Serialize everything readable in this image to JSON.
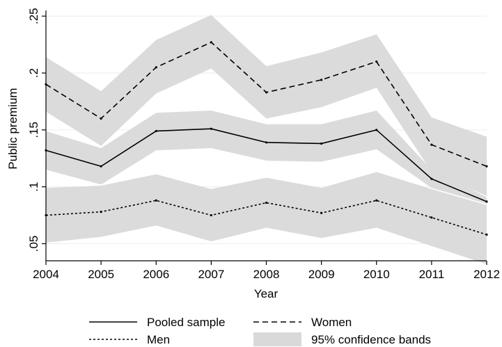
{
  "chart_data": {
    "type": "line",
    "title": "",
    "xlabel": "Year",
    "ylabel": "Public premium",
    "x": [
      2004,
      2005,
      2006,
      2007,
      2008,
      2009,
      2010,
      2011,
      2012
    ],
    "xticks": [
      "2004",
      "2005",
      "2006",
      "2007",
      "2008",
      "2009",
      "2010",
      "2011",
      "2012"
    ],
    "ylim": [
      0.035,
      0.255
    ],
    "yticks": [
      0.05,
      0.1,
      0.15,
      0.2,
      0.25
    ],
    "yticklabels": [
      ".05",
      ".1",
      ".15",
      ".2",
      ".25"
    ],
    "grid": true,
    "legend_position": "bottom",
    "series": [
      {
        "name": "Pooled sample",
        "style": "solid",
        "values": [
          0.132,
          0.118,
          0.149,
          0.151,
          0.139,
          0.138,
          0.15,
          0.107,
          0.087
        ],
        "ci_lower": [
          0.115,
          0.102,
          0.132,
          0.134,
          0.123,
          0.122,
          0.133,
          0.099,
          0.085
        ],
        "ci_upper": [
          0.149,
          0.134,
          0.165,
          0.167,
          0.155,
          0.155,
          0.167,
          0.115,
          0.091
        ]
      },
      {
        "name": "Women",
        "style": "dashed",
        "values": [
          0.19,
          0.16,
          0.205,
          0.227,
          0.183,
          0.194,
          0.21,
          0.137,
          0.118
        ],
        "ci_lower": [
          0.166,
          0.136,
          0.182,
          0.204,
          0.16,
          0.17,
          0.187,
          0.113,
          0.092
        ],
        "ci_upper": [
          0.214,
          0.184,
          0.229,
          0.251,
          0.206,
          0.218,
          0.234,
          0.161,
          0.144
        ]
      },
      {
        "name": "Men",
        "style": "dotted",
        "values": [
          0.075,
          0.078,
          0.088,
          0.075,
          0.086,
          0.077,
          0.088,
          0.073,
          0.058
        ],
        "ci_lower": [
          0.051,
          0.056,
          0.066,
          0.052,
          0.064,
          0.055,
          0.064,
          0.048,
          0.032
        ],
        "ci_upper": [
          0.099,
          0.101,
          0.111,
          0.098,
          0.108,
          0.099,
          0.113,
          0.098,
          0.084
        ]
      }
    ],
    "band_label": "95% confidence bands",
    "colors": {
      "band": "#d9d9d9",
      "line": "#000000",
      "grid": "#eaf0f2",
      "axis": "#000000"
    }
  }
}
